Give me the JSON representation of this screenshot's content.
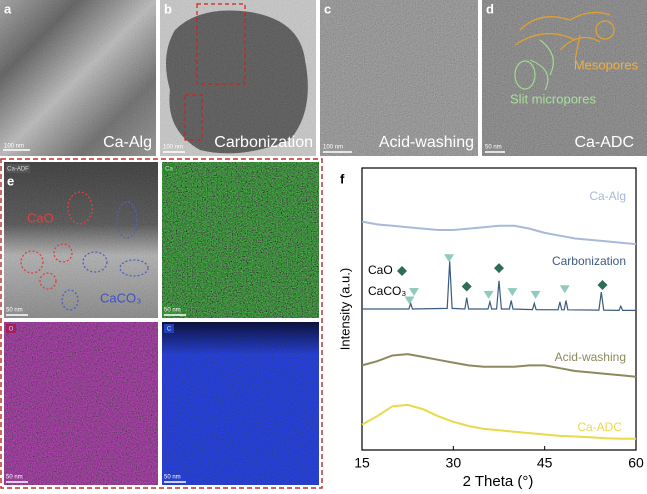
{
  "panels": [
    {
      "letter": "a",
      "caption": "Ca-Alg",
      "scale_bar": "100 nm"
    },
    {
      "letter": "b",
      "caption": "Carbonization",
      "scale_bar": "100 nm"
    },
    {
      "letter": "c",
      "caption": "Acid-washing",
      "scale_bar": "100 nm"
    },
    {
      "letter": "d",
      "caption": "Ca-ADC",
      "scale_bar": "50 nm",
      "annotations": [
        "Mesopores",
        "Slit micropores"
      ]
    }
  ],
  "panel_e": {
    "letter": "e",
    "phase_labels": [
      "CaO",
      "CaCO₃"
    ],
    "maps": [
      {
        "label": "Ca-ADF",
        "scale_bar": "50 nm"
      },
      {
        "label": "Ca",
        "scale_bar": "50 nm"
      },
      {
        "label": "O",
        "scale_bar": "50 nm"
      },
      {
        "label": "C",
        "scale_bar": "50 nm"
      }
    ]
  },
  "chart_data": {
    "type": "line",
    "letter": "f",
    "x_label": "2 Theta (°)",
    "y_label": "Intensity (a.u.)",
    "xlim": [
      15,
      60
    ],
    "xticks": [
      15,
      30,
      45,
      60
    ],
    "ylim": [
      0,
      10
    ],
    "series": [
      {
        "name": "Ca-Alg",
        "color": "#a9b9d9",
        "x": [
          15,
          17.5,
          20,
          22.5,
          25,
          27.5,
          30,
          32.5,
          35,
          37.5,
          40,
          42.5,
          45,
          47.5,
          50,
          52.5,
          55,
          57.5,
          60
        ],
        "values": [
          8.1,
          8.0,
          7.95,
          7.9,
          7.85,
          7.8,
          7.8,
          7.85,
          7.9,
          7.95,
          7.95,
          7.85,
          7.7,
          7.6,
          7.5,
          7.45,
          7.4,
          7.35,
          7.3
        ]
      },
      {
        "name": "Carbonization",
        "color": "#3b5b82",
        "x": [
          15,
          20,
          22.7,
          23,
          23.3,
          29,
          29.4,
          29.8,
          31.9,
          32.2,
          32.5,
          35.7,
          36,
          36.3,
          37.1,
          37.5,
          37.9,
          39.2,
          39.5,
          39.8,
          43,
          43.3,
          43.6,
          47.2,
          47.5,
          47.8,
          48.2,
          48.5,
          48.8,
          53.9,
          54.3,
          54.7,
          57.2,
          57.5,
          57.8,
          60
        ],
        "values": [
          5.0,
          5.0,
          5.0,
          5.2,
          5.0,
          5.02,
          6.7,
          5.02,
          5.0,
          5.4,
          5.0,
          5.0,
          5.25,
          5.0,
          5.0,
          6.0,
          5.0,
          5.0,
          5.3,
          5.0,
          4.98,
          5.2,
          4.98,
          4.97,
          5.25,
          4.97,
          4.97,
          5.3,
          4.97,
          4.96,
          5.6,
          4.96,
          4.95,
          5.1,
          4.95,
          4.95
        ]
      },
      {
        "name": "Acid-washing",
        "color": "#8c8a5c",
        "x": [
          15,
          17.5,
          20,
          22.5,
          25,
          27.5,
          30,
          32.5,
          35,
          37.5,
          40,
          42.5,
          45,
          47.5,
          50,
          52.5,
          55,
          57.5,
          60
        ],
        "values": [
          3.0,
          3.15,
          3.35,
          3.4,
          3.3,
          3.2,
          3.1,
          3.0,
          2.95,
          2.95,
          2.95,
          3.0,
          3.0,
          2.9,
          2.8,
          2.75,
          2.7,
          2.65,
          2.6
        ]
      },
      {
        "name": "Ca-ADC",
        "color": "#e9d94c",
        "x": [
          15,
          17.5,
          20,
          22.5,
          25,
          27.5,
          30,
          32.5,
          35,
          37.5,
          40,
          42.5,
          45,
          47.5,
          50,
          52.5,
          55,
          57.5,
          60
        ],
        "values": [
          0.9,
          1.2,
          1.55,
          1.6,
          1.45,
          1.2,
          1.0,
          0.85,
          0.75,
          0.7,
          0.65,
          0.6,
          0.55,
          0.5,
          0.48,
          0.45,
          0.42,
          0.4,
          0.4
        ]
      }
    ],
    "markers": [
      {
        "name": "CaO",
        "shape": "diamond",
        "color": "#2f6b5b",
        "x": [
          32.2,
          37.5,
          54.5
        ],
        "values": [
          5.8,
          6.45,
          5.85
        ]
      },
      {
        "name": "CaCO₃",
        "shape": "triangle",
        "color": "#8fcabd",
        "x": [
          22.8,
          29.3,
          35.8,
          39.7,
          43.5,
          48.3
        ],
        "values": [
          5.3,
          6.8,
          5.5,
          5.6,
          5.5,
          5.7
        ]
      }
    ]
  }
}
